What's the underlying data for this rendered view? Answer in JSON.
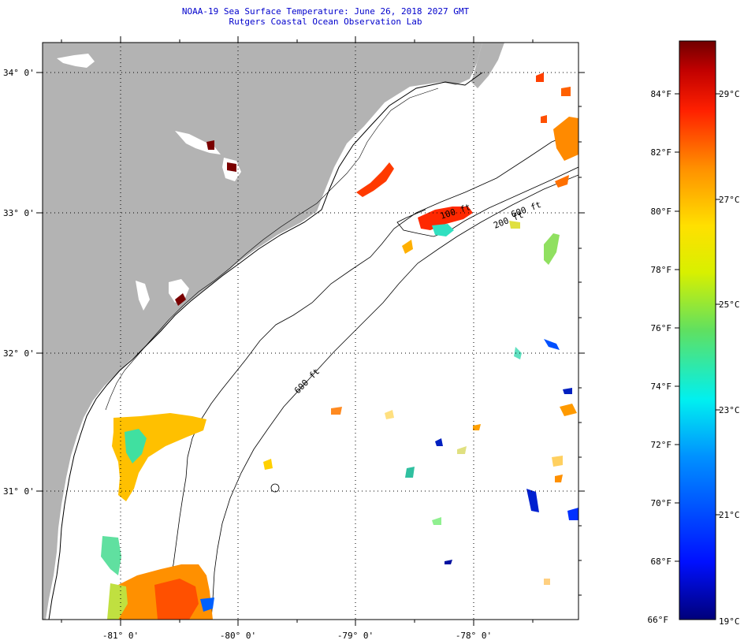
{
  "title": {
    "line1": "NOAA-19 Sea Surface Temperature:  June 26, 2018 2027 GMT",
    "line2": "Rutgers Coastal Ocean Observation Lab"
  },
  "map": {
    "lat_labels": [
      "34° 0'",
      "33° 0'",
      "32° 0'",
      "31° 0'"
    ],
    "lon_labels": [
      "-81° 0'",
      "-80° 0'",
      "-79° 0'",
      "-78° 0'"
    ],
    "isobath_labels": [
      "100 ft",
      "200 ft",
      "600 ft",
      "600 ft"
    ],
    "land_color": "#b3b3b3",
    "ocean_color": "#ffffff"
  },
  "colorbar": {
    "f_labels": [
      "84°F",
      "82°F",
      "80°F",
      "78°F",
      "76°F",
      "74°F",
      "72°F",
      "70°F",
      "68°F",
      "66°F"
    ],
    "c_labels": [
      "29°C",
      "27°C",
      "25°C",
      "23°C",
      "21°C",
      "19°C"
    ]
  }
}
